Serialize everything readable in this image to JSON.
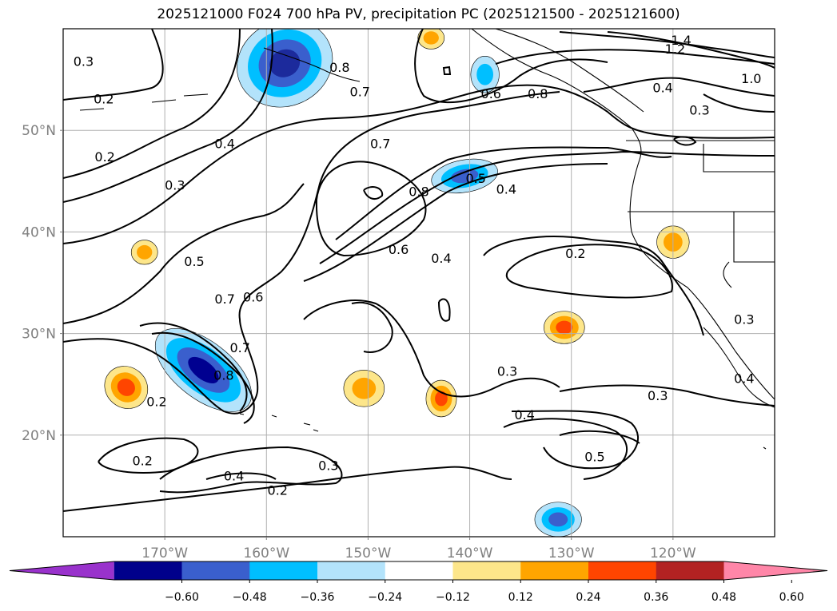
{
  "title": "2025121000 F024 700 hPa PV, precipitation PC (2025121500 - 2025121600)",
  "map": {
    "lon_range": [
      -180,
      -110
    ],
    "lat_range": [
      10,
      60
    ],
    "lon_ticks": [
      {
        "value": -170,
        "label": "170°W"
      },
      {
        "value": -160,
        "label": "160°W"
      },
      {
        "value": -150,
        "label": "150°W"
      },
      {
        "value": -140,
        "label": "140°W"
      },
      {
        "value": -130,
        "label": "130°W"
      },
      {
        "value": -120,
        "label": "120°W"
      }
    ],
    "lat_ticks": [
      {
        "value": 20,
        "label": "20°N"
      },
      {
        "value": 30,
        "label": "30°N"
      },
      {
        "value": 40,
        "label": "40°N"
      },
      {
        "value": 50,
        "label": "50°N"
      }
    ],
    "gridlines": true,
    "contour_labels": [
      {
        "text": "0.3",
        "lon": -178,
        "lat": 56.7
      },
      {
        "text": "0.2",
        "lon": -176,
        "lat": 53.0
      },
      {
        "text": "0.2",
        "lon": -175.9,
        "lat": 47.3
      },
      {
        "text": "0.3",
        "lon": -169.0,
        "lat": 44.5
      },
      {
        "text": "0.4",
        "lon": -164.1,
        "lat": 48.6
      },
      {
        "text": "0.8",
        "lon": -152.8,
        "lat": 56.1
      },
      {
        "text": "0.7",
        "lon": -150.8,
        "lat": 53.7
      },
      {
        "text": "0.7",
        "lon": -148.8,
        "lat": 48.6
      },
      {
        "text": "0.6",
        "lon": -137.9,
        "lat": 53.5
      },
      {
        "text": "0.8",
        "lon": -133.3,
        "lat": 53.5
      },
      {
        "text": "0.8",
        "lon": -145.0,
        "lat": 43.9
      },
      {
        "text": "0.5",
        "lon": -139.4,
        "lat": 45.2
      },
      {
        "text": "0.4",
        "lon": -136.4,
        "lat": 44.1
      },
      {
        "text": "0.6",
        "lon": -147.0,
        "lat": 38.2
      },
      {
        "text": "0.4",
        "lon": -142.8,
        "lat": 37.3
      },
      {
        "text": "0.2",
        "lon": -129.6,
        "lat": 37.8
      },
      {
        "text": "0.5",
        "lon": -167.1,
        "lat": 37.0
      },
      {
        "text": "0.7",
        "lon": -164.1,
        "lat": 33.3
      },
      {
        "text": "0.6",
        "lon": -161.3,
        "lat": 33.5
      },
      {
        "text": "0.7",
        "lon": -162.6,
        "lat": 28.5
      },
      {
        "text": "0.8",
        "lon": -164.2,
        "lat": 25.8
      },
      {
        "text": "0.2",
        "lon": -170.8,
        "lat": 23.2
      },
      {
        "text": "0.2",
        "lon": -172.2,
        "lat": 17.4
      },
      {
        "text": "0.4",
        "lon": -163.2,
        "lat": 15.9
      },
      {
        "text": "0.3",
        "lon": -153.9,
        "lat": 16.9
      },
      {
        "text": "0.2",
        "lon": -158.9,
        "lat": 14.5
      },
      {
        "text": "0.3",
        "lon": -136.3,
        "lat": 26.2
      },
      {
        "text": "0.3",
        "lon": -121.5,
        "lat": 23.8
      },
      {
        "text": "0.4",
        "lon": -134.6,
        "lat": 21.9
      },
      {
        "text": "0.5",
        "lon": -127.7,
        "lat": 17.8
      },
      {
        "text": "1.4",
        "lon": -119.2,
        "lat": 58.8
      },
      {
        "text": "1.2",
        "lon": -119.8,
        "lat": 57.9
      },
      {
        "text": "1.0",
        "lon": -112.3,
        "lat": 55.0
      },
      {
        "text": "0.4",
        "lon": -121.0,
        "lat": 54.1
      },
      {
        "text": "0.3",
        "lon": -117.4,
        "lat": 51.9
      },
      {
        "text": "0.3",
        "lon": -113.0,
        "lat": 31.3
      },
      {
        "text": "0.4",
        "lon": -113.0,
        "lat": 25.5
      }
    ],
    "precip_blobs": [
      {
        "name": "north-pacific-low",
        "lon": -158.2,
        "lat": 56.6,
        "rx": 4.8,
        "ry": 4.2,
        "rot": -25,
        "levels": [
          "#b3e3fb",
          "#00bfff",
          "#3a5fcd",
          "#1c2a9c"
        ]
      },
      {
        "name": "hawaii-trough",
        "lon": -166.2,
        "lat": 26.4,
        "rx": 5.6,
        "ry": 2.8,
        "rot": 38,
        "levels": [
          "#b3e3fb",
          "#00bfff",
          "#3a5fcd",
          "#000090"
        ]
      },
      {
        "name": "jet-exit",
        "lon": -140.5,
        "lat": 45.5,
        "rx": 3.3,
        "ry": 1.6,
        "rot": -10,
        "levels": [
          "#b3e3fb",
          "#00bfff",
          "#3a5fcd"
        ]
      },
      {
        "name": "far-southeast",
        "lon": -131.3,
        "lat": 11.7,
        "rx": 2.3,
        "ry": 1.7,
        "rot": 0,
        "levels": [
          "#b3e3fb",
          "#00bfff",
          "#3a5fcd"
        ]
      },
      {
        "name": "gulf-of-alaska-east",
        "lon": -138.5,
        "lat": 55.5,
        "rx": 1.4,
        "ry": 1.8,
        "rot": 0,
        "levels": [
          "#b3e3fb",
          "#00bfff"
        ]
      },
      {
        "name": "sw-hawaii-wet",
        "lon": -173.8,
        "lat": 24.7,
        "rx": 2.2,
        "ry": 2.0,
        "rot": 40,
        "levels": [
          "#fde68a",
          "#ffa500",
          "#ff4500"
        ]
      },
      {
        "name": "subtropical-east",
        "lon": -130.7,
        "lat": 30.6,
        "rx": 2.0,
        "ry": 1.6,
        "rot": 0,
        "levels": [
          "#fde68a",
          "#ffa500",
          "#ff4500"
        ]
      },
      {
        "name": "subtropical-central",
        "lon": -150.4,
        "lat": 24.6,
        "rx": 2.0,
        "ry": 1.8,
        "rot": 0,
        "levels": [
          "#fde68a",
          "#ffa500"
        ]
      },
      {
        "name": "subtropical-mid",
        "lon": -142.8,
        "lat": 23.6,
        "rx": 1.5,
        "ry": 1.8,
        "rot": 0,
        "levels": [
          "#fde68a",
          "#ffa500",
          "#ff4500"
        ]
      },
      {
        "name": "california-coast",
        "lon": -120.0,
        "lat": 39.0,
        "rx": 1.6,
        "ry": 1.6,
        "rot": 0,
        "levels": [
          "#fde68a",
          "#ffa500"
        ]
      },
      {
        "name": "mid-pacific-small",
        "lon": -172.0,
        "lat": 38.0,
        "rx": 1.3,
        "ry": 1.2,
        "rot": 0,
        "levels": [
          "#fde68a",
          "#ffa500"
        ]
      },
      {
        "name": "aleutian-south",
        "lon": -143.8,
        "lat": 59.1,
        "rx": 1.3,
        "ry": 1.1,
        "rot": 0,
        "levels": [
          "#fde68a",
          "#ffa500"
        ]
      }
    ],
    "colorbar": {
      "colors": [
        "#9932cc",
        "#00008b",
        "#3a5fcd",
        "#00bfff",
        "#b3e3fb",
        "#ffffff",
        "#fde68a",
        "#ffa500",
        "#ff4500",
        "#b22222",
        "#ff86a8"
      ],
      "bounds": [
        "−0.60",
        "−0.48",
        "−0.36",
        "−0.24",
        "−0.12",
        "0.12",
        "0.24",
        "0.36",
        "0.48",
        "0.60"
      ]
    }
  }
}
